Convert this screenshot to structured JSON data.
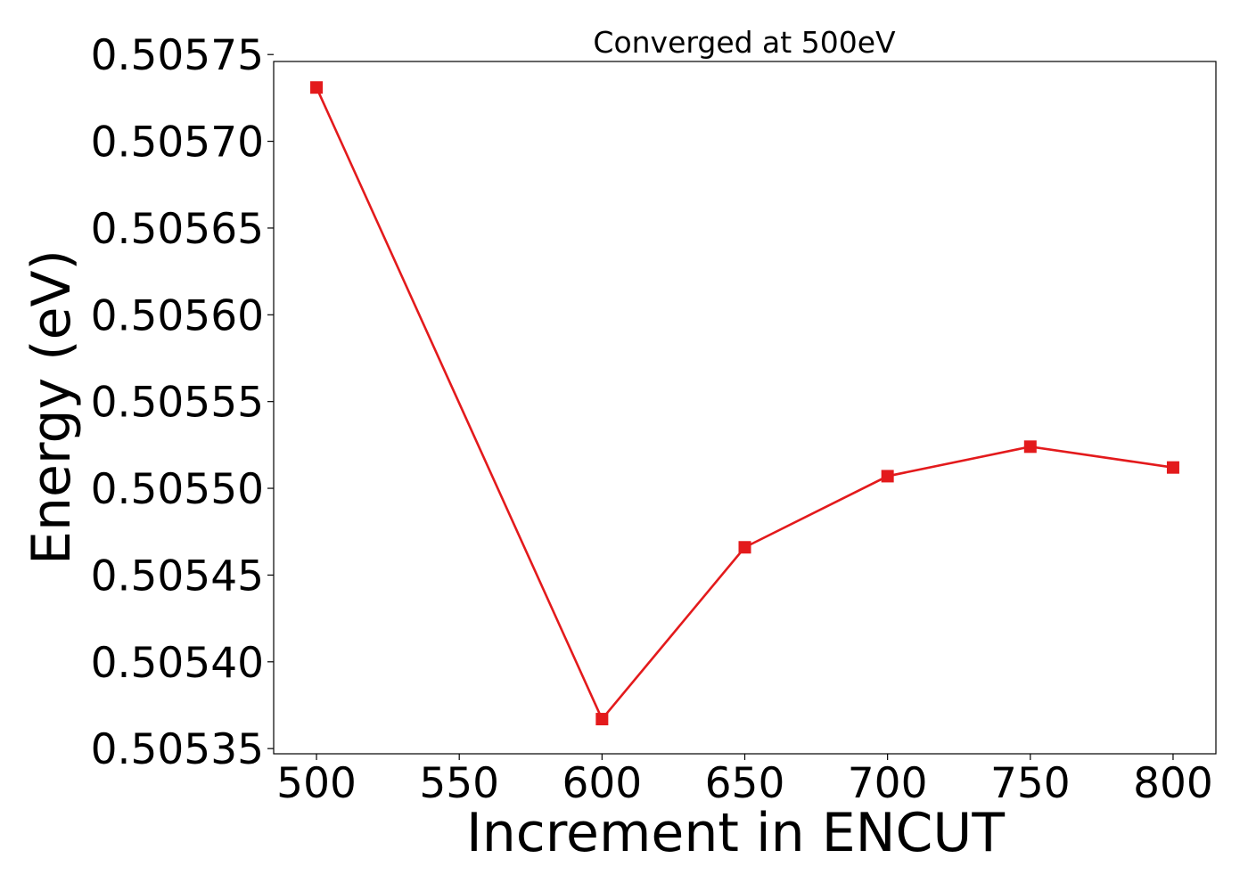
{
  "chart_data": {
    "type": "line",
    "title": "Converged at 500eV",
    "xlabel": "Increment in ENCUT",
    "ylabel": "Energy (eV)",
    "x": [
      500,
      600,
      650,
      700,
      750,
      800
    ],
    "series": [
      {
        "values": [
          0.505731,
          0.505367,
          0.505466,
          0.505507,
          0.505524,
          0.505512
        ],
        "color": "#e31a1c",
        "marker": "square"
      }
    ],
    "xlim": [
      485,
      815
    ],
    "ylim": [
      0.505347,
      0.505746
    ],
    "xticks": [
      "500",
      "550",
      "600",
      "650",
      "700",
      "750",
      "800"
    ],
    "yticks": [
      "0.50535",
      "0.50540",
      "0.50545",
      "0.50550",
      "0.50555",
      "0.50560",
      "0.50565",
      "0.50570",
      "0.50575"
    ],
    "grid": false,
    "legend": "none"
  }
}
